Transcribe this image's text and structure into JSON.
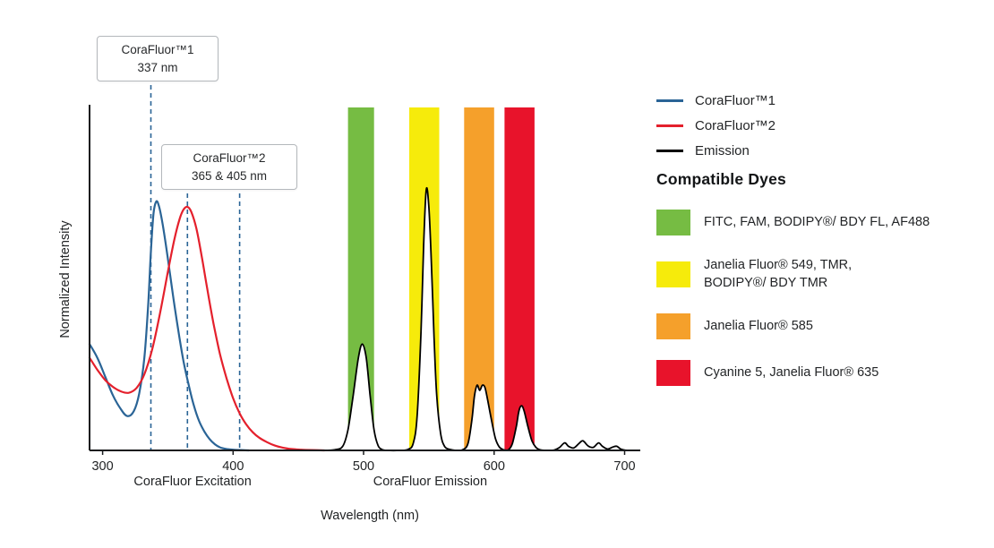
{
  "colors": {
    "blue": "#2A6496",
    "red": "#E4202C",
    "black": "#000000",
    "green": "#76BC43",
    "yellow": "#F6EB0B",
    "orange": "#F5A02B",
    "band_red": "#E8132B",
    "marker_blue": "#2A6496"
  },
  "callouts": [
    {
      "title": "CoraFluor™1",
      "value": "337 nm",
      "markers_nm": [
        337
      ]
    },
    {
      "title": "CoraFluor™2",
      "value": "365 & 405 nm",
      "markers_nm": [
        365,
        405
      ]
    }
  ],
  "chart_data": {
    "type": "line",
    "title": "",
    "xlabel": "Wavelength (nm)",
    "ylabel": "Normalized Intensity",
    "x_range": [
      290,
      712
    ],
    "y_range": [
      0,
      1
    ],
    "x_ticks": [
      300,
      400,
      500,
      600,
      700
    ],
    "grid": false,
    "legend_position": "right",
    "section_labels": [
      {
        "id": "excitation",
        "text": "CoraFluor Excitation",
        "x_nm": 369
      },
      {
        "id": "emission",
        "text": "CoraFluor Emission",
        "x_nm": 551
      }
    ],
    "bands": [
      {
        "id": "green",
        "from_nm": 488,
        "to_nm": 508,
        "color": "#76BC43",
        "dyes": "FITC, FAM, BODIPY®/ BDY FL, AF488"
      },
      {
        "id": "yellow",
        "from_nm": 535,
        "to_nm": 558,
        "color": "#F6EB0B",
        "dyes": "Janelia Fluor® 549, TMR, BODIPY®/ BDY TMR"
      },
      {
        "id": "orange",
        "from_nm": 577,
        "to_nm": 600,
        "color": "#F5A02B",
        "dyes": "Janelia Fluor® 585"
      },
      {
        "id": "red",
        "from_nm": 608,
        "to_nm": 631,
        "color": "#E8132B",
        "dyes": "Cyanine 5, Janelia Fluor® 635"
      }
    ],
    "series": [
      {
        "id": "corafluor1",
        "name": "CoraFluor™1",
        "color": "#2A6496",
        "width": 2.2,
        "filled": false,
        "points": [
          [
            290,
            0.31
          ],
          [
            296,
            0.27
          ],
          [
            302,
            0.215
          ],
          [
            308,
            0.16
          ],
          [
            314,
            0.12
          ],
          [
            319,
            0.1
          ],
          [
            324,
            0.115
          ],
          [
            328,
            0.165
          ],
          [
            332,
            0.27
          ],
          [
            335,
            0.43
          ],
          [
            337,
            0.58
          ],
          [
            339,
            0.69
          ],
          [
            341,
            0.725
          ],
          [
            343,
            0.715
          ],
          [
            346,
            0.66
          ],
          [
            350,
            0.56
          ],
          [
            354,
            0.45
          ],
          [
            358,
            0.35
          ],
          [
            362,
            0.26
          ],
          [
            366,
            0.19
          ],
          [
            370,
            0.13
          ],
          [
            374,
            0.085
          ],
          [
            378,
            0.055
          ],
          [
            382,
            0.033
          ],
          [
            386,
            0.018
          ],
          [
            390,
            0.009
          ],
          [
            395,
            0.004
          ],
          [
            400,
            0.002
          ],
          [
            406,
            0.001
          ],
          [
            412,
            0
          ]
        ]
      },
      {
        "id": "corafluor2",
        "name": "CoraFluor™2",
        "color": "#E4202C",
        "width": 2.2,
        "filled": false,
        "points": [
          [
            290,
            0.27
          ],
          [
            296,
            0.235
          ],
          [
            302,
            0.205
          ],
          [
            308,
            0.185
          ],
          [
            314,
            0.172
          ],
          [
            320,
            0.168
          ],
          [
            326,
            0.182
          ],
          [
            332,
            0.222
          ],
          [
            338,
            0.295
          ],
          [
            344,
            0.4
          ],
          [
            350,
            0.52
          ],
          [
            355,
            0.615
          ],
          [
            359,
            0.675
          ],
          [
            362,
            0.702
          ],
          [
            365,
            0.71
          ],
          [
            368,
            0.695
          ],
          [
            372,
            0.645
          ],
          [
            376,
            0.565
          ],
          [
            380,
            0.475
          ],
          [
            385,
            0.37
          ],
          [
            390,
            0.28
          ],
          [
            395,
            0.21
          ],
          [
            400,
            0.152
          ],
          [
            405,
            0.108
          ],
          [
            410,
            0.076
          ],
          [
            415,
            0.053
          ],
          [
            420,
            0.037
          ],
          [
            426,
            0.024
          ],
          [
            432,
            0.014
          ],
          [
            438,
            0.008
          ],
          [
            445,
            0.004
          ],
          [
            452,
            0.002
          ],
          [
            460,
            0.001
          ],
          [
            470,
            0
          ]
        ]
      },
      {
        "id": "emission",
        "name": "Emission",
        "color": "#000000",
        "width": 1.8,
        "filled": true,
        "points": [
          [
            468,
            0
          ],
          [
            478,
            0.002
          ],
          [
            484,
            0.012
          ],
          [
            488,
            0.06
          ],
          [
            492,
            0.16
          ],
          [
            496,
            0.27
          ],
          [
            499,
            0.31
          ],
          [
            502,
            0.27
          ],
          [
            505,
            0.16
          ],
          [
            508,
            0.06
          ],
          [
            511,
            0.015
          ],
          [
            514,
            0.003
          ],
          [
            518,
            0
          ],
          [
            528,
            0
          ],
          [
            534,
            0.003
          ],
          [
            538,
            0.02
          ],
          [
            541,
            0.1
          ],
          [
            544,
            0.35
          ],
          [
            546,
            0.6
          ],
          [
            548,
            0.76
          ],
          [
            550,
            0.71
          ],
          [
            552,
            0.54
          ],
          [
            554,
            0.33
          ],
          [
            556,
            0.16
          ],
          [
            559,
            0.05
          ],
          [
            562,
            0.012
          ],
          [
            566,
            0.003
          ],
          [
            571,
            0
          ],
          [
            576,
            0.002
          ],
          [
            580,
            0.02
          ],
          [
            583,
            0.09
          ],
          [
            585,
            0.16
          ],
          [
            587,
            0.19
          ],
          [
            589,
            0.175
          ],
          [
            591,
            0.19
          ],
          [
            593,
            0.183
          ],
          [
            595,
            0.148
          ],
          [
            598,
            0.088
          ],
          [
            601,
            0.035
          ],
          [
            604,
            0.01
          ],
          [
            607,
            0.002
          ],
          [
            611,
            0.002
          ],
          [
            614,
            0.02
          ],
          [
            617,
            0.07
          ],
          [
            619,
            0.115
          ],
          [
            621,
            0.13
          ],
          [
            623,
            0.115
          ],
          [
            626,
            0.068
          ],
          [
            629,
            0.028
          ],
          [
            632,
            0.009
          ],
          [
            635,
            0.002
          ],
          [
            640,
            0
          ],
          [
            646,
            0.001
          ],
          [
            650,
            0.008
          ],
          [
            654,
            0.022
          ],
          [
            657,
            0.012
          ],
          [
            661,
            0.007
          ],
          [
            665,
            0.02
          ],
          [
            668,
            0.028
          ],
          [
            672,
            0.013
          ],
          [
            676,
            0.009
          ],
          [
            680,
            0.022
          ],
          [
            683,
            0.012
          ],
          [
            687,
            0.004
          ],
          [
            691,
            0.01
          ],
          [
            694,
            0.012
          ],
          [
            697,
            0.004
          ],
          [
            700,
            0.001
          ],
          [
            704,
            0
          ]
        ]
      }
    ]
  },
  "legend": {
    "lines": [
      {
        "label": "CoraFluor™1",
        "color": "#2A6496"
      },
      {
        "label": "CoraFluor™2",
        "color": "#E4202C"
      },
      {
        "label": "Emission",
        "color": "#000000"
      }
    ],
    "dyes_heading": "Compatible Dyes",
    "dyes": [
      {
        "color": "#76BC43",
        "label": "FITC, FAM, BODIPY®/ BDY FL, AF488"
      },
      {
        "color": "#F6EB0B",
        "label": "Janelia Fluor® 549, TMR,\nBODIPY®/ BDY TMR"
      },
      {
        "color": "#F5A02B",
        "label": "Janelia Fluor® 585"
      },
      {
        "color": "#E8132B",
        "label": "Cyanine 5, Janelia Fluor® 635"
      }
    ]
  }
}
